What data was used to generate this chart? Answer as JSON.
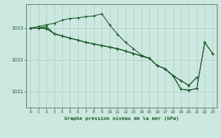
{
  "background_color": "#cde8e0",
  "grid_color": "#aed0c8",
  "line_color": "#1a5c2a",
  "spine_color": "#5a7a60",
  "title": "Graphe pression niveau de la mer (hPa)",
  "xlim": [
    -0.5,
    23.5
  ],
  "ylim": [
    1020.5,
    1023.75
  ],
  "yticks": [
    1021,
    1022,
    1023
  ],
  "xticks": [
    0,
    1,
    2,
    3,
    4,
    5,
    6,
    7,
    8,
    9,
    10,
    11,
    12,
    13,
    14,
    15,
    16,
    17,
    18,
    19,
    20,
    21,
    22,
    23
  ],
  "line1_x": [
    0,
    1,
    2,
    3,
    4,
    5,
    6,
    7,
    8,
    9,
    10,
    11,
    12,
    13,
    14,
    15,
    16,
    17,
    18,
    19,
    20,
    21,
    22,
    23
  ],
  "line1_y": [
    1023.0,
    1023.05,
    1023.1,
    1023.15,
    1023.25,
    1023.3,
    1023.32,
    1023.36,
    1023.38,
    1023.45,
    1023.1,
    1022.8,
    1022.55,
    1022.35,
    1022.15,
    1022.05,
    1021.82,
    1021.72,
    1021.5,
    1021.08,
    1021.05,
    1021.1,
    1022.55,
    1022.2
  ],
  "line2_x": [
    0,
    1,
    2,
    3,
    4,
    5,
    6,
    7,
    8,
    9,
    10,
    11,
    12,
    13,
    14,
    15,
    16,
    17,
    18,
    19,
    20,
    21,
    22,
    23
  ],
  "line2_y": [
    1023.0,
    1023.0,
    1023.05,
    1022.82,
    1022.75,
    1022.68,
    1022.62,
    1022.55,
    1022.5,
    1022.45,
    1022.4,
    1022.35,
    1022.28,
    1022.2,
    1022.12,
    1022.05,
    1021.82,
    1021.72,
    1021.5,
    1021.08,
    1021.05,
    1021.1,
    1022.55,
    1022.2
  ],
  "line3_x": [
    0,
    1,
    2,
    3,
    4,
    5,
    6,
    7,
    8,
    9,
    10,
    11,
    12,
    13,
    14,
    15,
    16,
    17,
    18,
    19,
    20,
    21
  ],
  "line3_y": [
    1023.0,
    1023.0,
    1023.0,
    1022.82,
    1022.75,
    1022.68,
    1022.62,
    1022.55,
    1022.5,
    1022.45,
    1022.4,
    1022.35,
    1022.28,
    1022.2,
    1022.12,
    1022.05,
    1021.82,
    1021.72,
    1021.5,
    1021.35,
    1021.2,
    1021.45
  ],
  "line4_x": [
    0,
    1,
    2,
    3,
    4,
    5,
    6,
    7,
    8,
    9,
    10,
    11,
    12,
    13,
    14,
    15,
    16,
    17,
    18,
    19,
    20,
    21
  ],
  "line4_y": [
    1023.0,
    1023.0,
    1022.98,
    1022.82,
    1022.75,
    1022.68,
    1022.62,
    1022.55,
    1022.5,
    1022.45,
    1022.4,
    1022.35,
    1022.28,
    1022.2,
    1022.12,
    1022.05,
    1021.82,
    1021.72,
    1021.5,
    1021.35,
    1021.2,
    1021.45
  ]
}
